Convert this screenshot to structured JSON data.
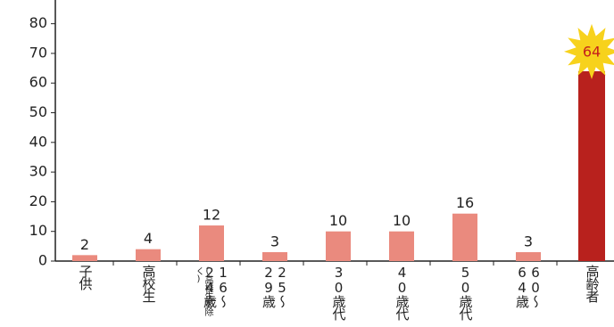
{
  "chart_data": {
    "type": "bar",
    "categories": [
      "子供",
      "高校生",
      "16〜24歳",
      "25〜29歳",
      "30歳代",
      "40歳代",
      "50歳代",
      "60〜64歳",
      "高齢者"
    ],
    "annotation": "(高校生を除く)",
    "values": [
      2,
      4,
      12,
      3,
      10,
      10,
      16,
      3,
      64
    ],
    "colors": [
      "#ea8a7e",
      "#ea8a7e",
      "#ea8a7e",
      "#ea8a7e",
      "#ea8a7e",
      "#ea8a7e",
      "#ea8a7e",
      "#ea8a7e",
      "#b8211d"
    ],
    "ylim": [
      0,
      88
    ],
    "yticks": [
      0,
      10,
      20,
      30,
      40,
      50,
      60,
      70,
      80
    ]
  }
}
